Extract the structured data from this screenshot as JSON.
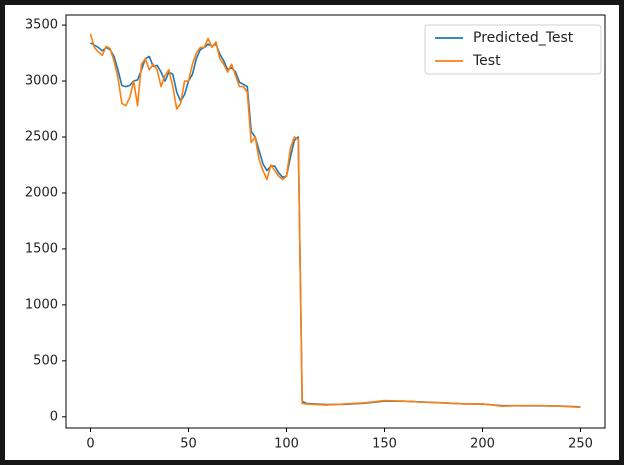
{
  "chart_data": {
    "type": "line",
    "x": [
      0,
      2,
      4,
      6,
      8,
      10,
      12,
      14,
      16,
      18,
      20,
      22,
      24,
      26,
      28,
      30,
      32,
      34,
      36,
      38,
      40,
      42,
      44,
      46,
      48,
      50,
      52,
      54,
      56,
      58,
      60,
      62,
      64,
      66,
      68,
      70,
      72,
      74,
      76,
      78,
      80,
      82,
      84,
      86,
      88,
      90,
      92,
      94,
      96,
      98,
      100,
      102,
      104,
      106,
      108,
      110,
      120,
      130,
      140,
      150,
      160,
      170,
      180,
      190,
      200,
      210,
      220,
      230,
      240,
      250
    ],
    "series": [
      {
        "name": "Predicted_Test",
        "color": "#1f77b4",
        "values": [
          3340,
          3320,
          3300,
          3270,
          3300,
          3280,
          3220,
          3100,
          2960,
          2950,
          2960,
          3000,
          3010,
          3100,
          3200,
          3220,
          3130,
          3140,
          3080,
          3000,
          3080,
          3060,
          2900,
          2820,
          2880,
          3000,
          3060,
          3200,
          3280,
          3300,
          3330,
          3310,
          3330,
          3240,
          3180,
          3100,
          3120,
          3080,
          2990,
          2970,
          2950,
          2550,
          2500,
          2380,
          2260,
          2200,
          2240,
          2240,
          2180,
          2140,
          2150,
          2320,
          2470,
          2500,
          140,
          120,
          110,
          112,
          122,
          140,
          140,
          132,
          124,
          116,
          114,
          100,
          98,
          98,
          96,
          88
        ]
      },
      {
        "name": "Test",
        "color": "#ff7f0e",
        "values": [
          3420,
          3300,
          3260,
          3230,
          3310,
          3290,
          3180,
          3030,
          2800,
          2780,
          2850,
          3000,
          2780,
          3150,
          3200,
          3100,
          3150,
          3100,
          2950,
          3050,
          3100,
          2950,
          2750,
          2800,
          3000,
          3000,
          3150,
          3250,
          3300,
          3300,
          3380,
          3300,
          3350,
          3200,
          3150,
          3080,
          3150,
          3050,
          2950,
          2950,
          2900,
          2450,
          2500,
          2300,
          2200,
          2120,
          2250,
          2200,
          2150,
          2120,
          2150,
          2400,
          2500,
          2480,
          120,
          115,
          105,
          115,
          125,
          145,
          140,
          130,
          125,
          115,
          115,
          95,
          100,
          100,
          95,
          85
        ]
      }
    ],
    "xlim": [
      -12.5,
      262.5
    ],
    "ylim": [
      -100,
      3590
    ],
    "xticks": [
      0,
      50,
      100,
      150,
      200,
      250
    ],
    "yticks": [
      0,
      500,
      1000,
      1500,
      2000,
      2500,
      3000,
      3500
    ],
    "legend": "upper right"
  }
}
